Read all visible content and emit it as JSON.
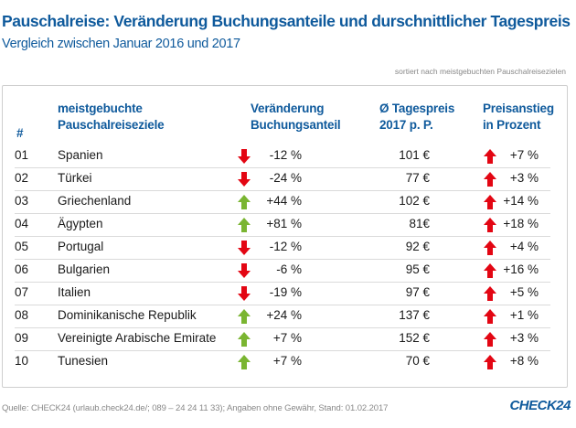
{
  "title": "Pauschalreise: Veränderung Buchungsanteile und durschnittlicher  Tagespreis",
  "subtitle": "Vergleich zwischen Januar 2016 und 2017",
  "sort_note": "sortiert nach meistgebuchten Pauschalreisezielen",
  "colors": {
    "brand": "#0f5a9c",
    "down": "#e30613",
    "up_green": "#7ab531",
    "up_red": "#e30613"
  },
  "headers": {
    "rank": "#",
    "destination_1": "meistgebuchte",
    "destination_2": "Pauschalreiseziele",
    "change_1": "Veränderung",
    "change_2": "Buchungsanteil",
    "price_1": "Ø Tagespreis",
    "price_2": "2017 p. P.",
    "increase_1": "Preisanstieg",
    "increase_2": "in Prozent"
  },
  "rows": [
    {
      "rank": "01",
      "destination": "Spanien",
      "change_dir": "down",
      "change": "-12 %",
      "price": "101 €",
      "increase_dir": "up",
      "increase": "+7 %"
    },
    {
      "rank": "02",
      "destination": "Türkei",
      "change_dir": "down",
      "change": "-24 %",
      "price": "77 €",
      "increase_dir": "up",
      "increase": "+3 %"
    },
    {
      "rank": "03",
      "destination": "Griechenland",
      "change_dir": "up",
      "change": "+44 %",
      "price": "102 €",
      "increase_dir": "up",
      "increase": "+14 %"
    },
    {
      "rank": "04",
      "destination": "Ägypten",
      "change_dir": "up",
      "change": "+81 %",
      "price": "81€",
      "increase_dir": "up",
      "increase": "+18 %"
    },
    {
      "rank": "05",
      "destination": "Portugal",
      "change_dir": "down",
      "change": "-12 %",
      "price": "92 €",
      "increase_dir": "up",
      "increase": "+4 %"
    },
    {
      "rank": "06",
      "destination": "Bulgarien",
      "change_dir": "down",
      "change": "-6 %",
      "price": "95 €",
      "increase_dir": "up",
      "increase": "+16 %"
    },
    {
      "rank": "07",
      "destination": "Italien",
      "change_dir": "down",
      "change": "-19 %",
      "price": "97 €",
      "increase_dir": "up",
      "increase": "+5 %"
    },
    {
      "rank": "08",
      "destination": "Dominikanische Republik",
      "change_dir": "up",
      "change": "+24 %",
      "price": "137 €",
      "increase_dir": "up",
      "increase": "+1 %"
    },
    {
      "rank": "09",
      "destination": "Vereinigte Arabische Emirate",
      "change_dir": "up",
      "change": "+7 %",
      "price": "152 €",
      "increase_dir": "up",
      "increase": "+3 %"
    },
    {
      "rank": "10",
      "destination": "Tunesien",
      "change_dir": "up",
      "change": "+7 %",
      "price": "70 €",
      "increase_dir": "up",
      "increase": "+8 %"
    }
  ],
  "footer": "Quelle: CHECK24 (urlaub.check24.de/; 089 – 24 24 11 33); Angaben ohne Gewähr, Stand: 01.02.2017",
  "logo": "CHECK24"
}
